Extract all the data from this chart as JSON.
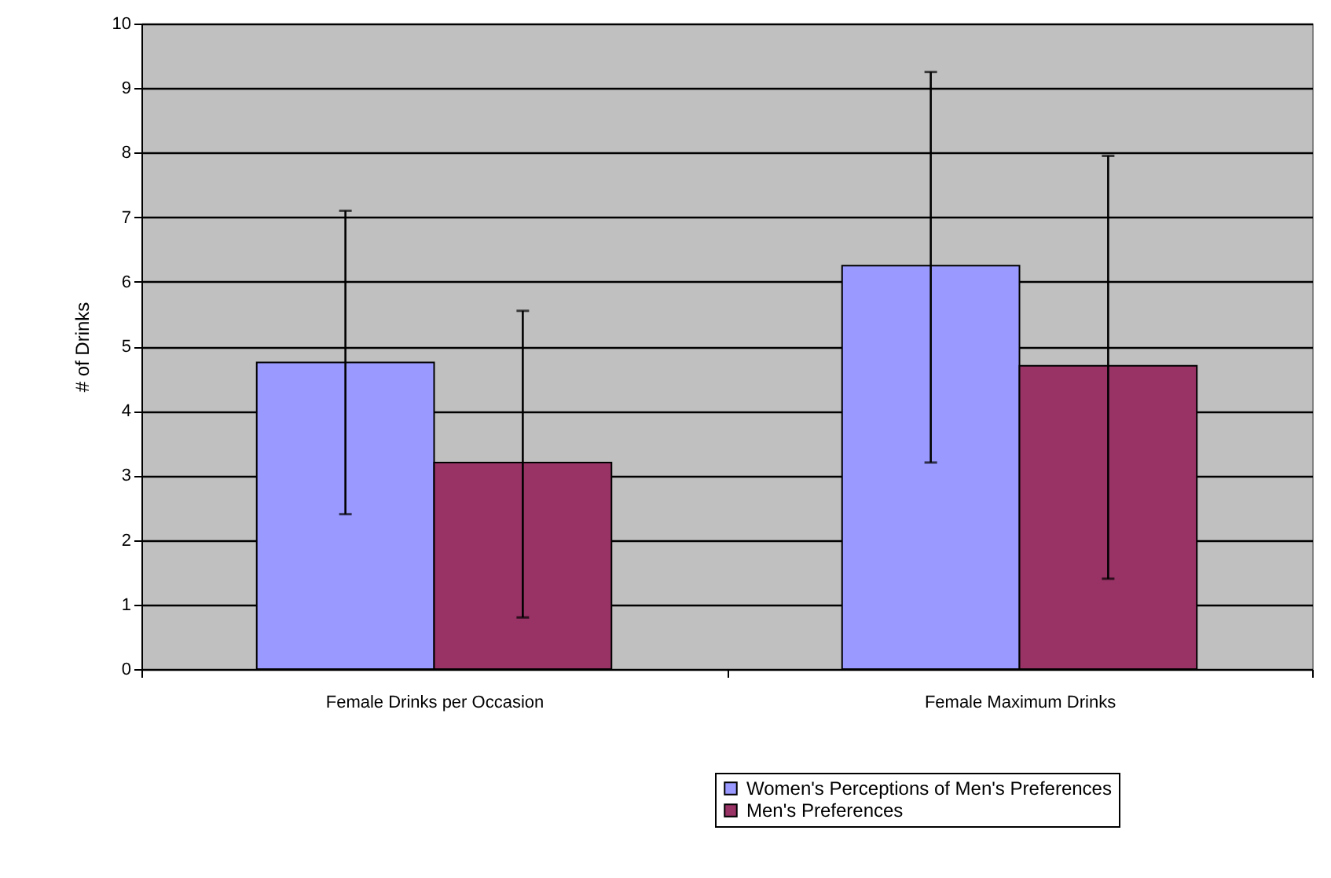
{
  "chart_data": {
    "type": "bar",
    "ylabel": "# of Drinks",
    "categories": [
      "Female Drinks per Occasion",
      "Female Maximum Drinks"
    ],
    "series": [
      {
        "name": "Women's Perceptions of Men's Preferences",
        "color": "#9999ff",
        "values": [
          4.75,
          6.25
        ],
        "errors": [
          [
            2.4,
            7.1
          ],
          [
            3.2,
            9.25
          ]
        ]
      },
      {
        "name": "Men's Preferences",
        "color": "#993366",
        "values": [
          3.2,
          4.7
        ],
        "errors": [
          [
            0.8,
            5.55
          ],
          [
            1.4,
            7.95
          ]
        ]
      }
    ],
    "ylim": [
      0,
      10
    ],
    "yticks": [
      0,
      1,
      2,
      3,
      4,
      5,
      6,
      7,
      8,
      9,
      10
    ],
    "grid": "y",
    "legend": "bottom right"
  }
}
